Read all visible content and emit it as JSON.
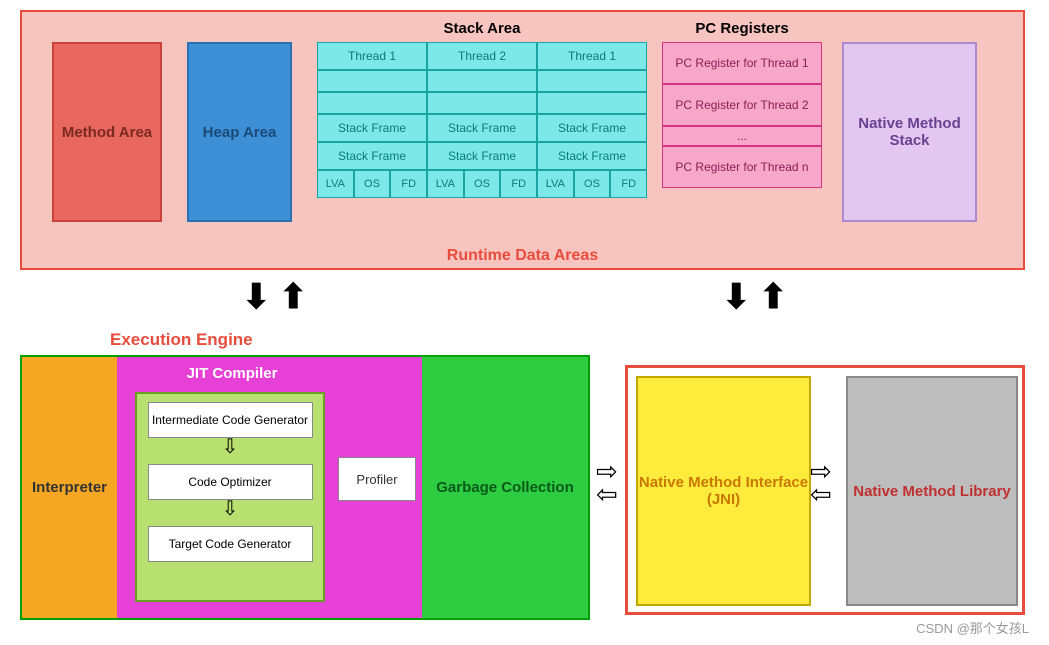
{
  "diagram": {
    "type": "architecture",
    "subject": "JVM Architecture",
    "colors": {
      "rda_border": "#e74c3c",
      "rda_bg": "#f8c4c0",
      "method_area": "#e8685f",
      "heap_area": "#3d8fd6",
      "stack_cell": "#7de8e8",
      "pc_cell": "#f7a8c8",
      "native_stack": "#e2c8f0",
      "interpreter": "#f5a623",
      "jit_bg": "#e640d6",
      "jit_inner": "#b8e070",
      "gc": "#2ecc40",
      "jni": "#ffeb3b",
      "nml": "#bdbdbd",
      "ee_border": "#00a000",
      "accent_red": "#e74c3c"
    }
  },
  "runtime_data_areas": {
    "title": "Runtime Data Areas",
    "method_area": "Method Area",
    "heap_area": "Heap Area",
    "stack_area": {
      "title": "Stack Area",
      "threads": [
        "Thread 1",
        "Thread 2",
        "Thread 1"
      ],
      "frames": [
        "Stack Frame",
        "Stack Frame"
      ],
      "sub": [
        "LVA",
        "OS",
        "FD"
      ]
    },
    "pc_registers": {
      "title": "PC Registers",
      "items": [
        "PC Register for Thread 1",
        "PC Register for Thread 2",
        "...",
        "PC Register for Thread n"
      ]
    },
    "native_method_stack": "Native Method Stack"
  },
  "execution_engine": {
    "title": "Execution Engine",
    "interpreter": "Interpreter",
    "jit": {
      "title": "JIT Compiler",
      "steps": [
        "Intermediate Code Generator",
        "Code Optimizer",
        "Target Code Generator"
      ],
      "profiler": "Profiler"
    },
    "gc": "Garbage Collection"
  },
  "native": {
    "jni": "Native Method Interface (JNI)",
    "library": "Native Method Library"
  },
  "watermark": "CSDN @那个女孩L"
}
